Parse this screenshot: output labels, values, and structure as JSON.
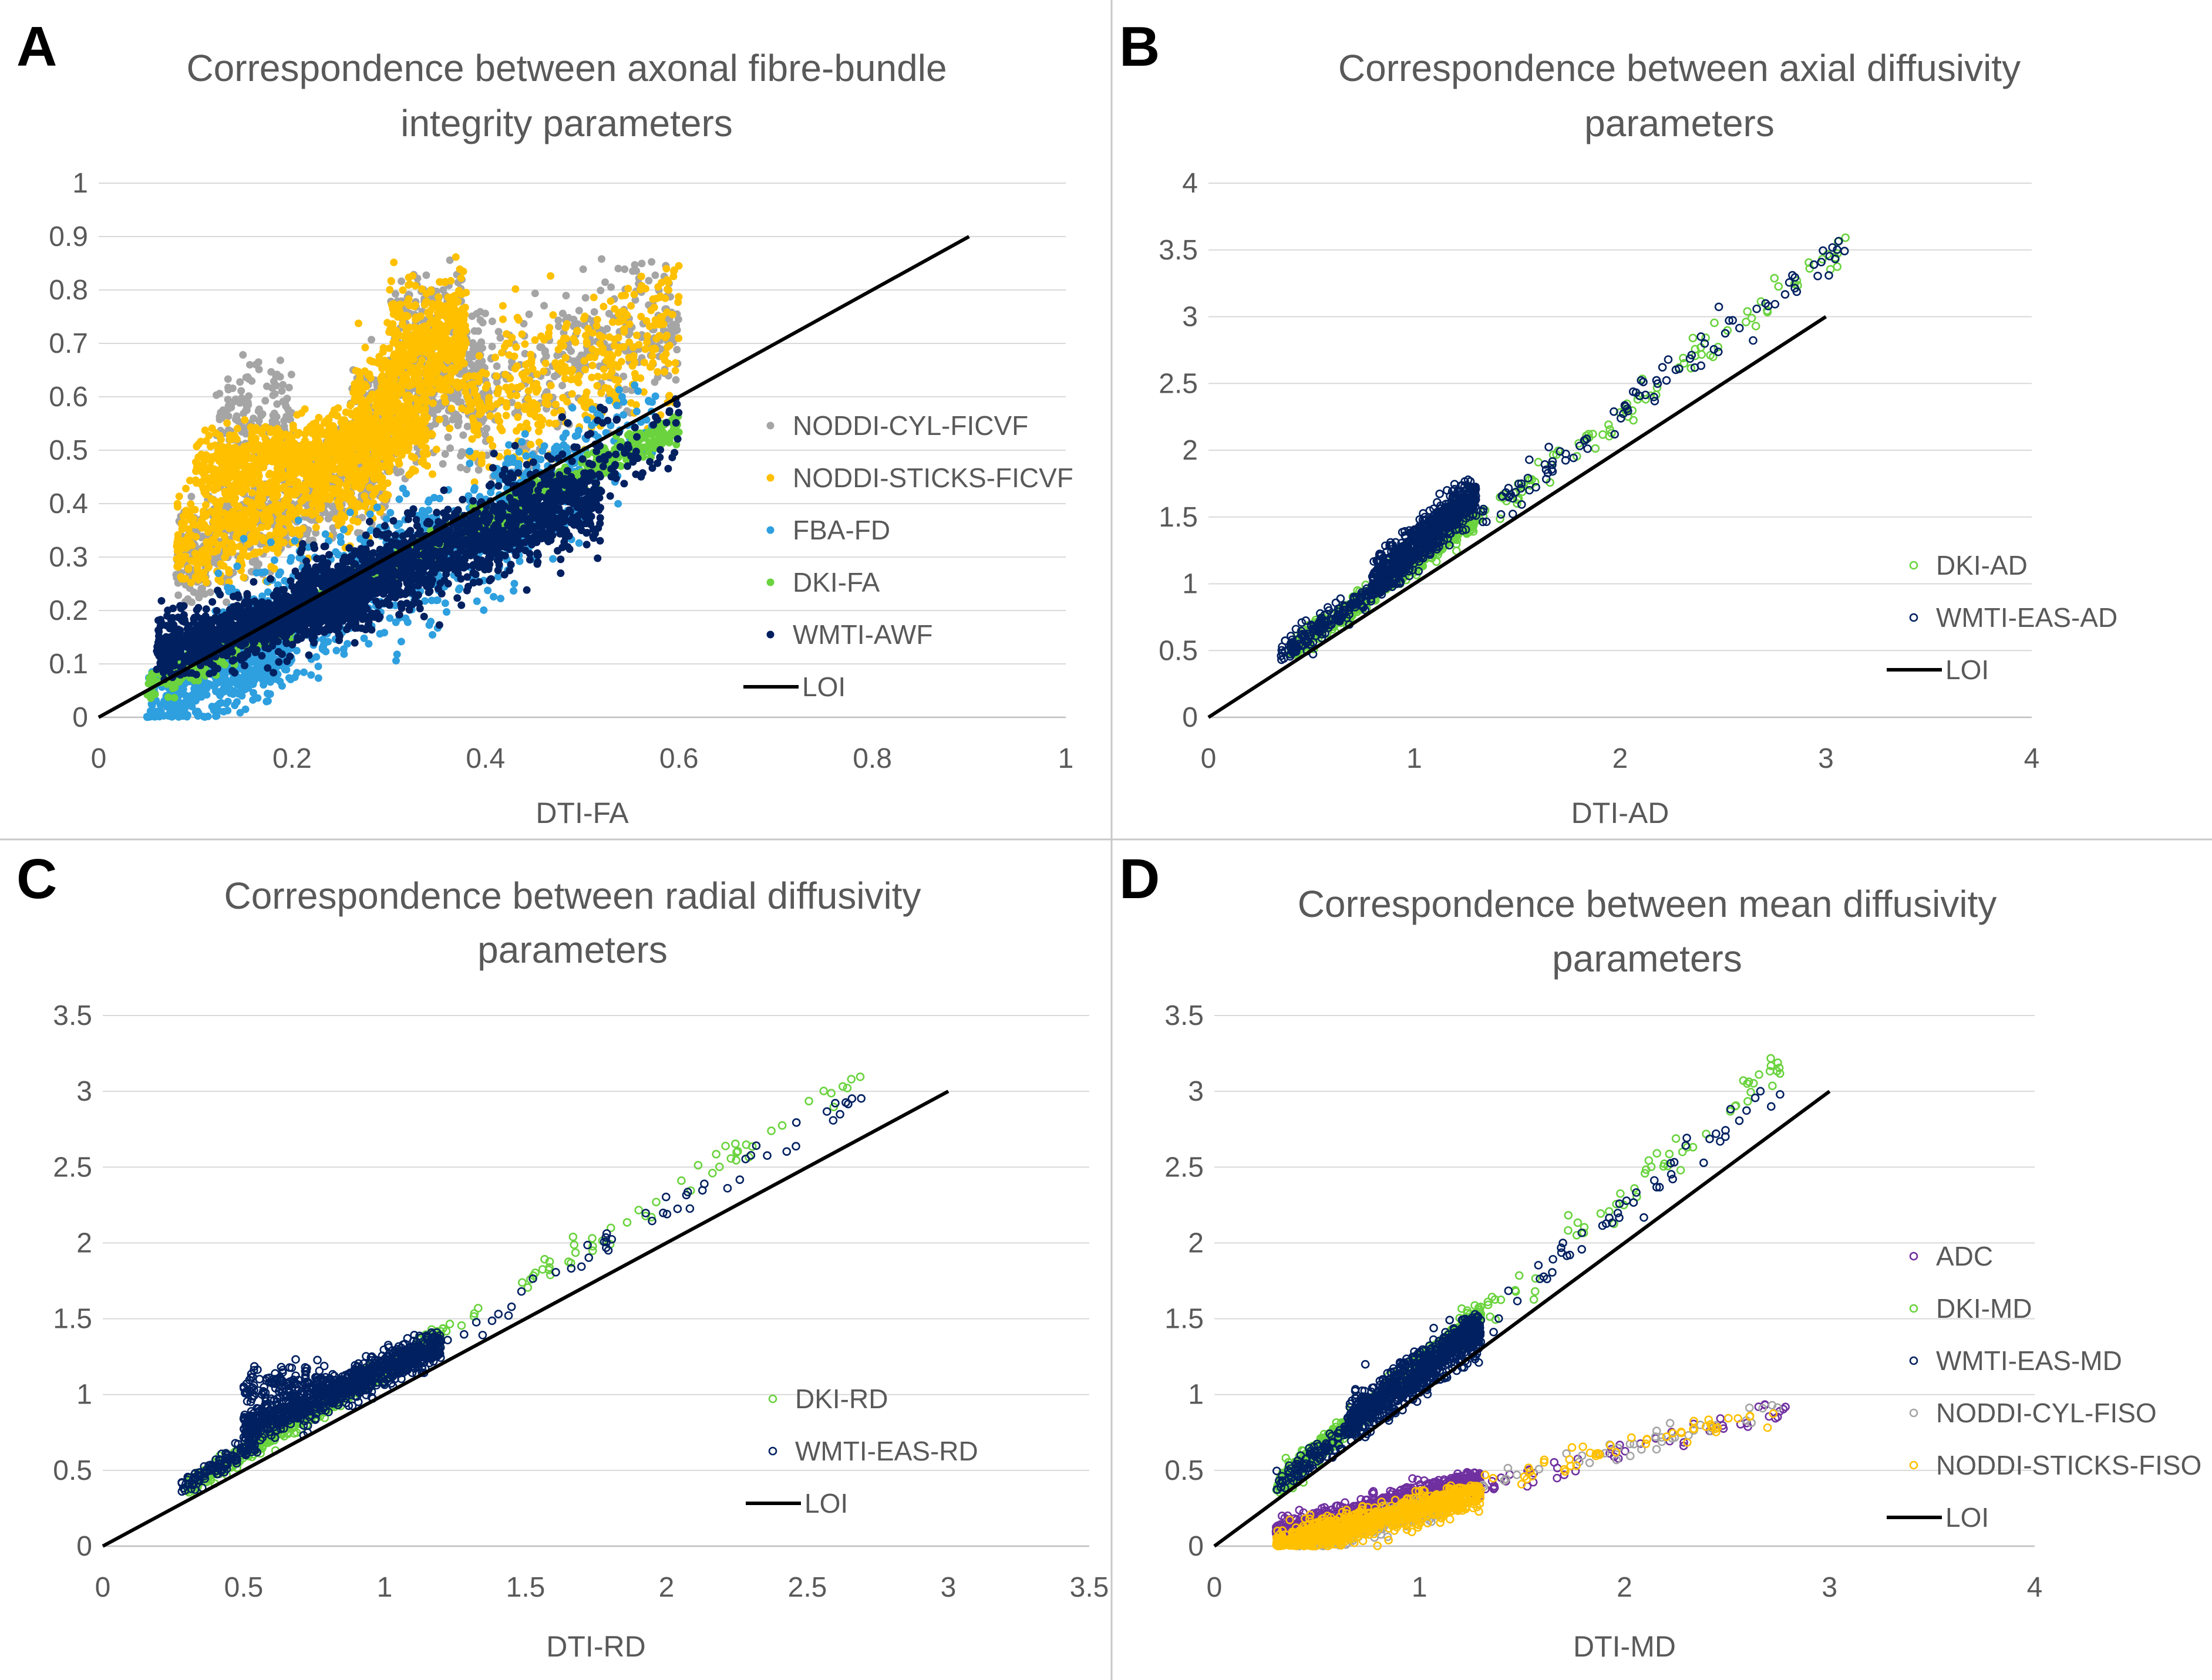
{
  "chart_data": [
    {
      "letter": "A",
      "type": "scatter",
      "title": [
        "Correspondence between axonal fibre-bundle",
        "integrity parameters"
      ],
      "xlabel": "DTI-FA",
      "xlim": [
        0,
        1
      ],
      "ylim": [
        0,
        1
      ],
      "xticks": [
        "0",
        "0.2",
        "0.4",
        "0.6",
        "0.8",
        "1"
      ],
      "yticks": [
        "0",
        "0.1",
        "0.2",
        "0.3",
        "0.4",
        "0.5",
        "0.6",
        "0.7",
        "0.8",
        "0.9",
        "1"
      ],
      "grid": true,
      "legend_position": "right",
      "series": [
        {
          "name": "NODDI-CYL-FICVF",
          "marker": "filled",
          "color": "#a5a5a5",
          "clusters": [
            {
              "x": [
                0.08,
                0.3
              ],
              "y": [
                0.25,
                0.52
              ],
              "slope": 0.85,
              "spread": 0.05,
              "n": 600
            },
            {
              "x": [
                0.12,
                0.2
              ],
              "y": [
                0.5,
                0.65
              ],
              "slope": 0.5,
              "spread": 0.05,
              "n": 120
            },
            {
              "x": [
                0.26,
                0.4
              ],
              "y": [
                0.5,
                0.7
              ],
              "slope": 1.0,
              "spread": 0.06,
              "n": 450
            },
            {
              "x": [
                0.3,
                0.38
              ],
              "y": [
                0.65,
                0.82
              ],
              "slope": 0.5,
              "spread": 0.05,
              "n": 140
            },
            {
              "x": [
                0.38,
                0.6
              ],
              "y": [
                0.52,
                0.8
              ],
              "slope": 0.8,
              "spread": 0.07,
              "n": 320
            }
          ]
        },
        {
          "name": "NODDI-STICKS-FICVF",
          "marker": "filled",
          "color": "#ffc000",
          "clusters": [
            {
              "x": [
                0.08,
                0.3
              ],
              "y": [
                0.3,
                0.5
              ],
              "slope": 0.8,
              "spread": 0.05,
              "n": 700
            },
            {
              "x": [
                0.1,
                0.34
              ],
              "y": [
                0.45,
                0.55
              ],
              "slope": 0.3,
              "spread": 0.03,
              "n": 800
            },
            {
              "x": [
                0.26,
                0.38
              ],
              "y": [
                0.5,
                0.75
              ],
              "slope": 1.2,
              "spread": 0.06,
              "n": 550
            },
            {
              "x": [
                0.3,
                0.38
              ],
              "y": [
                0.65,
                0.82
              ],
              "slope": 0.5,
              "spread": 0.05,
              "n": 200
            },
            {
              "x": [
                0.38,
                0.6
              ],
              "y": [
                0.5,
                0.78
              ],
              "slope": 0.8,
              "spread": 0.07,
              "n": 400
            }
          ]
        },
        {
          "name": "FBA-FD",
          "marker": "filled",
          "color": "#2e9fdf",
          "clusters": [
            {
              "x": [
                0.05,
                0.2
              ],
              "y": [
                0.0,
                0.15
              ],
              "slope": 0.8,
              "spread": 0.04,
              "n": 450
            },
            {
              "x": [
                0.12,
                0.5
              ],
              "y": [
                0.12,
                0.45
              ],
              "slope": 0.85,
              "spread": 0.06,
              "n": 900
            },
            {
              "x": [
                0.42,
                0.58
              ],
              "y": [
                0.35,
                0.62
              ],
              "slope": 1.0,
              "spread": 0.05,
              "n": 120
            }
          ]
        },
        {
          "name": "DKI-FA",
          "marker": "filled",
          "color": "#6ad33e",
          "clusters": [
            {
              "x": [
                0.05,
                0.6
              ],
              "y": [
                0.05,
                0.55
              ],
              "slope": 0.9,
              "spread": 0.015,
              "n": 900
            }
          ]
        },
        {
          "name": "WMTI-AWF",
          "marker": "filled",
          "color": "#002060",
          "clusters": [
            {
              "x": [
                0.06,
                0.28
              ],
              "y": [
                0.1,
                0.25
              ],
              "slope": 0.5,
              "spread": 0.03,
              "n": 1100
            },
            {
              "x": [
                0.2,
                0.52
              ],
              "y": [
                0.2,
                0.42
              ],
              "slope": 0.65,
              "spread": 0.04,
              "n": 1300
            },
            {
              "x": [
                0.4,
                0.6
              ],
              "y": [
                0.38,
                0.55
              ],
              "slope": 0.7,
              "spread": 0.05,
              "n": 150
            }
          ]
        },
        {
          "name": "LOI",
          "marker": "line",
          "color": "#000000",
          "points": [
            [
              0,
              0
            ],
            [
              0.9,
              0.9
            ]
          ]
        }
      ]
    },
    {
      "letter": "B",
      "type": "scatter",
      "title": [
        "Correspondence between axial diffusivity",
        "parameters"
      ],
      "xlabel": "DTI-AD",
      "xlim": [
        0,
        4
      ],
      "ylim": [
        0,
        4
      ],
      "xticks": [
        "0",
        "1",
        "2",
        "3",
        "4"
      ],
      "yticks": [
        "0",
        "0.5",
        "1",
        "1.5",
        "2",
        "2.5",
        "3",
        "3.5",
        "4"
      ],
      "grid": true,
      "legend_position": "right",
      "series": [
        {
          "name": "DKI-AD",
          "marker": "open",
          "color": "#6ad33e",
          "clusters": [
            {
              "x": [
                0.4,
                1.3
              ],
              "y": [
                0.5,
                1.5
              ],
              "slope": 1.1,
              "spread": 0.04,
              "n": 700
            },
            {
              "x": [
                1.3,
                3.1
              ],
              "y": [
                1.45,
                3.55
              ],
              "slope": 1.15,
              "spread": 0.06,
              "n": 90
            }
          ]
        },
        {
          "name": "WMTI-EAS-AD",
          "marker": "open",
          "color": "#002060",
          "clusters": [
            {
              "x": [
                0.35,
                1.0
              ],
              "y": [
                0.45,
                1.2
              ],
              "slope": 1.1,
              "spread": 0.05,
              "n": 250
            },
            {
              "x": [
                0.8,
                1.3
              ],
              "y": [
                1.0,
                1.7
              ],
              "slope": 1.3,
              "spread": 0.08,
              "n": 650
            },
            {
              "x": [
                1.3,
                3.1
              ],
              "y": [
                1.5,
                3.5
              ],
              "slope": 1.15,
              "spread": 0.07,
              "n": 100
            }
          ]
        },
        {
          "name": "LOI",
          "marker": "line",
          "color": "#000000",
          "points": [
            [
              0,
              0
            ],
            [
              3,
              3
            ]
          ]
        }
      ]
    },
    {
      "letter": "C",
      "type": "scatter",
      "title": [
        "Correspondence between radial diffusivity",
        "parameters"
      ],
      "xlabel": "DTI-RD",
      "xlim": [
        0,
        3.5
      ],
      "ylim": [
        0,
        3.5
      ],
      "xticks": [
        "0",
        "0.5",
        "1",
        "1.5",
        "2",
        "2.5",
        "3",
        "3.5"
      ],
      "yticks": [
        "0",
        "0.5",
        "1",
        "1.5",
        "2",
        "2.5",
        "3",
        "3.5"
      ],
      "grid": true,
      "legend_position": "right",
      "series": [
        {
          "name": "DKI-RD",
          "marker": "open",
          "color": "#6ad33e",
          "clusters": [
            {
              "x": [
                0.3,
                1.2
              ],
              "y": [
                0.38,
                1.4
              ],
              "slope": 1.1,
              "spread": 0.03,
              "n": 700
            },
            {
              "x": [
                1.2,
                2.7
              ],
              "y": [
                1.4,
                3.1
              ],
              "slope": 1.12,
              "spread": 0.05,
              "n": 60
            }
          ]
        },
        {
          "name": "WMTI-EAS-RD",
          "marker": "open",
          "color": "#002060",
          "clusters": [
            {
              "x": [
                0.28,
                0.55
              ],
              "y": [
                0.38,
                0.7
              ],
              "slope": 1.1,
              "spread": 0.03,
              "n": 120
            },
            {
              "x": [
                0.5,
                1.2
              ],
              "y": [
                0.75,
                1.35
              ],
              "slope": 0.8,
              "spread": 0.06,
              "n": 900
            },
            {
              "x": [
                0.5,
                0.8
              ],
              "y": [
                0.9,
                1.25
              ],
              "slope": 0.2,
              "spread": 0.06,
              "n": 120
            },
            {
              "x": [
                1.2,
                2.7
              ],
              "y": [
                1.35,
                2.95
              ],
              "slope": 1.1,
              "spread": 0.05,
              "n": 50
            }
          ]
        },
        {
          "name": "LOI",
          "marker": "line",
          "color": "#000000",
          "points": [
            [
              0,
              0
            ],
            [
              3,
              3
            ]
          ]
        }
      ]
    },
    {
      "letter": "D",
      "type": "scatter",
      "title": [
        "Correspondence between mean diffusivity",
        "parameters"
      ],
      "xlabel": "DTI-MD",
      "xlim": [
        0,
        4
      ],
      "ylim": [
        0,
        3.5
      ],
      "xticks": [
        "0",
        "1",
        "2",
        "3",
        "4"
      ],
      "yticks": [
        "0",
        "0.5",
        "1",
        "1.5",
        "2",
        "2.5",
        "3",
        "3.5"
      ],
      "grid": true,
      "legend_position": "right",
      "series": [
        {
          "name": "ADC",
          "marker": "open",
          "color": "#7030a0",
          "clusters": [
            {
              "x": [
                0.3,
                1.3
              ],
              "y": [
                0.08,
                0.45
              ],
              "slope": 0.35,
              "spread": 0.04,
              "n": 700
            },
            {
              "x": [
                1.3,
                2.8
              ],
              "y": [
                0.4,
                0.9
              ],
              "slope": 0.33,
              "spread": 0.04,
              "n": 50
            }
          ]
        },
        {
          "name": "DKI-MD",
          "marker": "open",
          "color": "#6ad33e",
          "clusters": [
            {
              "x": [
                0.3,
                1.3
              ],
              "y": [
                0.38,
                1.55
              ],
              "slope": 1.15,
              "spread": 0.04,
              "n": 650
            },
            {
              "x": [
                1.3,
                2.8
              ],
              "y": [
                1.5,
                3.25
              ],
              "slope": 1.15,
              "spread": 0.07,
              "n": 60
            }
          ]
        },
        {
          "name": "WMTI-EAS-MD",
          "marker": "open",
          "color": "#002060",
          "clusters": [
            {
              "x": [
                0.3,
                0.7
              ],
              "y": [
                0.4,
                0.8
              ],
              "slope": 1.1,
              "spread": 0.04,
              "n": 120
            },
            {
              "x": [
                0.65,
                1.3
              ],
              "y": [
                0.8,
                1.45
              ],
              "slope": 1.0,
              "spread": 0.08,
              "n": 750
            },
            {
              "x": [
                1.3,
                2.8
              ],
              "y": [
                1.45,
                3.1
              ],
              "slope": 1.1,
              "spread": 0.06,
              "n": 50
            }
          ]
        },
        {
          "name": "NODDI-CYL-FISO",
          "marker": "open",
          "color": "#a5a5a5",
          "clusters": [
            {
              "x": [
                0.4,
                1.2
              ],
              "y": [
                0.0,
                0.3
              ],
              "slope": 0.4,
              "spread": 0.04,
              "n": 300
            },
            {
              "x": [
                1.3,
                2.8
              ],
              "y": [
                0.4,
                0.9
              ],
              "slope": 0.33,
              "spread": 0.04,
              "n": 40
            }
          ]
        },
        {
          "name": "NODDI-STICKS-FISO",
          "marker": "open",
          "color": "#ffc000",
          "clusters": [
            {
              "x": [
                0.3,
                1.3
              ],
              "y": [
                0.0,
                0.35
              ],
              "slope": 0.35,
              "spread": 0.05,
              "n": 900
            },
            {
              "x": [
                1.3,
                2.8
              ],
              "y": [
                0.4,
                0.92
              ],
              "slope": 0.34,
              "spread": 0.04,
              "n": 50
            }
          ]
        },
        {
          "name": "LOI",
          "marker": "line",
          "color": "#000000",
          "points": [
            [
              0,
              0
            ],
            [
              3,
              3
            ]
          ]
        }
      ]
    }
  ]
}
